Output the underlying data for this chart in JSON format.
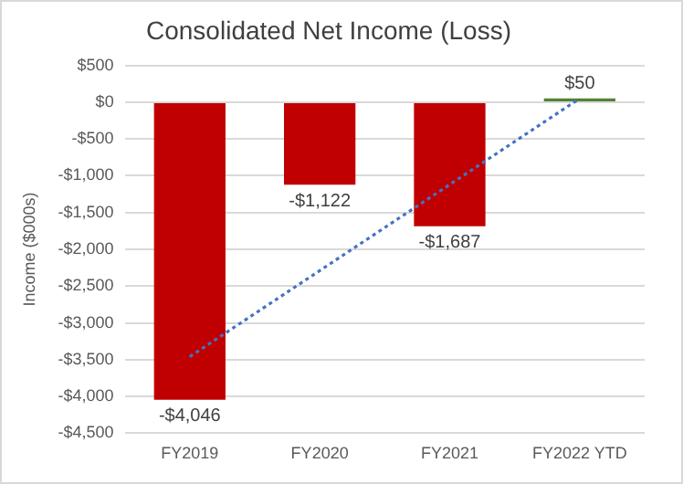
{
  "chart_data": {
    "type": "bar",
    "title": "Consolidated Net Income (Loss)",
    "ylabel": "Income ($000s)",
    "categories": [
      "FY2019",
      "FY2020",
      "FY2021",
      "FY2022 YTD"
    ],
    "series": [
      {
        "colors": [
          "#c00000",
          "#c00000",
          "#c00000",
          "#548235"
        ],
        "values": [
          -4046,
          -1122,
          -1687,
          50
        ],
        "value_labels": [
          "-$4,046",
          "-$1,122",
          "-$1,687",
          "$50"
        ]
      },
      {
        "type": "line",
        "color": "#4472c4",
        "values": [
          -3460,
          -2290,
          -1120,
          50
        ]
      }
    ],
    "ylim": [
      -4500,
      500
    ],
    "yticks": [
      {
        "value": -4500,
        "label": "-$4,500"
      },
      {
        "value": -4000,
        "label": "-$4,000"
      },
      {
        "value": -3500,
        "label": "-$3,500"
      },
      {
        "value": -3000,
        "label": "-$3,000"
      },
      {
        "value": -2500,
        "label": "-$2,500"
      },
      {
        "value": -2000,
        "label": "-$2,000"
      },
      {
        "value": -1500,
        "label": "-$1,500"
      },
      {
        "value": -1000,
        "label": "-$1,000"
      },
      {
        "value": -500,
        "label": "-$500"
      },
      {
        "value": 0,
        "label": "$0"
      },
      {
        "value": 500,
        "label": "$500"
      }
    ],
    "grid": "y",
    "legend": false,
    "marker": "none",
    "line_style": "dotted"
  }
}
